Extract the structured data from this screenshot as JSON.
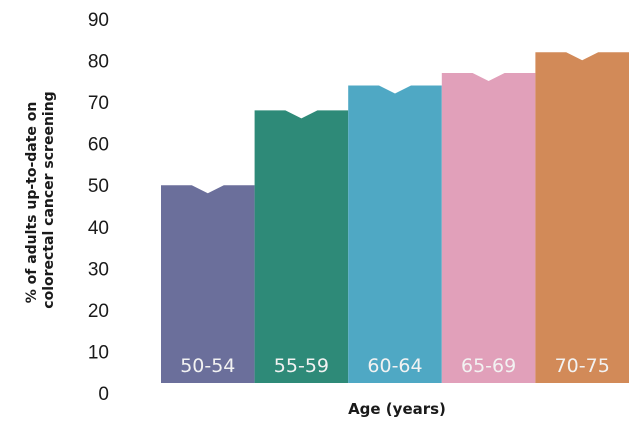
{
  "chart_data": {
    "type": "bar",
    "title": "",
    "ylabel_lines": [
      "% of adults up-to-date on",
      "colorectal cancer screening"
    ],
    "xlabel": "Age (years)",
    "ylim": [
      0,
      90
    ],
    "yticks": [
      "0",
      "10",
      "20",
      "30",
      "40",
      "50",
      "60",
      "70",
      "80",
      "90"
    ],
    "categories": [
      "50-54",
      "55-59",
      "60-64",
      "65-69",
      "70-75"
    ],
    "values": [
      50,
      68,
      74,
      77,
      82
    ],
    "colors": [
      "#6b6f9b",
      "#2e8a78",
      "#4fa8c4",
      "#e1a0ba",
      "#d28a58"
    ],
    "grid": false,
    "legend": "none"
  }
}
